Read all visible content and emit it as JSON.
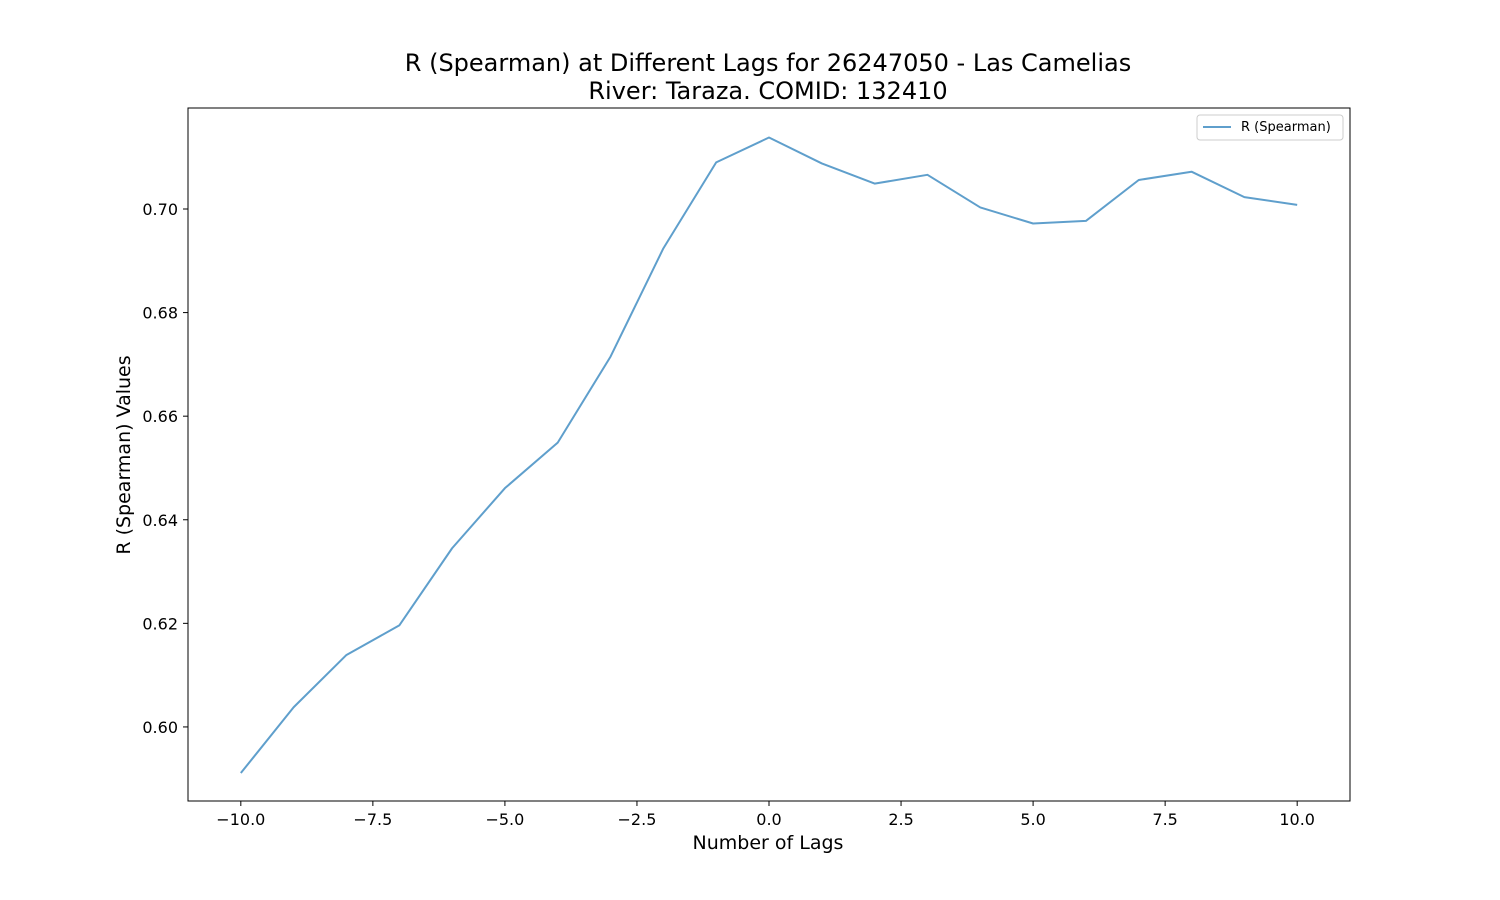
{
  "chart_data": {
    "type": "line",
    "title_line1": "R (Spearman) at Different Lags for 26247050 - Las Camelias",
    "title_line2": "River: Taraza. COMID: 132410",
    "xlabel": "Number of Lags",
    "ylabel": "R (Spearman) Values",
    "xlim": [
      -11,
      11
    ],
    "ylim": [
      0.5857,
      0.7195
    ],
    "x_ticks": [
      -10.0,
      -7.5,
      -5.0,
      -2.5,
      0.0,
      2.5,
      5.0,
      7.5,
      10.0
    ],
    "x_tick_labels": [
      "−10.0",
      "−7.5",
      "−5.0",
      "−2.5",
      "0.0",
      "2.5",
      "5.0",
      "7.5",
      "10.0"
    ],
    "y_ticks": [
      0.6,
      0.62,
      0.64,
      0.66,
      0.68,
      0.7
    ],
    "y_tick_labels": [
      "0.60",
      "0.62",
      "0.64",
      "0.66",
      "0.68",
      "0.70"
    ],
    "grid": false,
    "legend_position": "top-right",
    "series": [
      {
        "name": "R (Spearman)",
        "color": "#5f9fcc",
        "x": [
          -10,
          -9,
          -8,
          -7,
          -6,
          -5,
          -4,
          -3,
          -2,
          -1,
          0,
          1,
          2,
          3,
          4,
          5,
          6,
          7,
          8,
          9,
          10
        ],
        "y": [
          0.5911,
          0.6038,
          0.6139,
          0.6196,
          0.6345,
          0.6461,
          0.6549,
          0.6715,
          0.6924,
          0.709,
          0.7138,
          0.7088,
          0.7049,
          0.7066,
          0.7003,
          0.6972,
          0.6977,
          0.7056,
          0.7072,
          0.7023,
          0.7008
        ]
      }
    ]
  }
}
